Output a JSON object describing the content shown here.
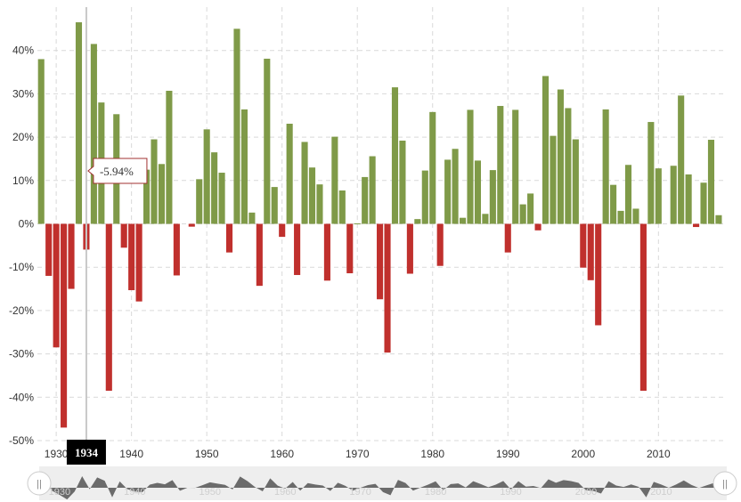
{
  "chart_data": {
    "type": "bar",
    "title": "",
    "xlabel": "",
    "ylabel": "",
    "x": [
      1928,
      1929,
      1930,
      1931,
      1932,
      1933,
      1934,
      1935,
      1936,
      1937,
      1938,
      1939,
      1940,
      1941,
      1942,
      1943,
      1944,
      1945,
      1946,
      1947,
      1948,
      1949,
      1950,
      1951,
      1952,
      1953,
      1954,
      1955,
      1956,
      1957,
      1958,
      1959,
      1960,
      1961,
      1962,
      1963,
      1964,
      1965,
      1966,
      1967,
      1968,
      1969,
      1970,
      1971,
      1972,
      1973,
      1974,
      1975,
      1976,
      1977,
      1978,
      1979,
      1980,
      1981,
      1982,
      1983,
      1984,
      1985,
      1986,
      1987,
      1988,
      1989,
      1990,
      1991,
      1992,
      1993,
      1994,
      1995,
      1996,
      1997,
      1998,
      1999,
      2000,
      2001,
      2002,
      2003,
      2004,
      2005,
      2006,
      2007,
      2008,
      2009,
      2010,
      2011,
      2012,
      2013,
      2014,
      2015,
      2016,
      2017,
      2018
    ],
    "values": [
      38,
      -12,
      -28.5,
      -47,
      -15,
      46.5,
      -5.94,
      41.5,
      28,
      -38.5,
      25.3,
      -5.5,
      -15.3,
      -17.9,
      12.5,
      19.5,
      13.8,
      30.7,
      -11.9,
      0,
      -0.65,
      10.3,
      21.8,
      16.5,
      11.8,
      -6.6,
      45,
      26.4,
      2.6,
      -14.3,
      38.1,
      8.5,
      -3,
      23.1,
      -11.8,
      18.9,
      13,
      9.1,
      -13.1,
      20.1,
      7.7,
      -11.4,
      0.1,
      10.8,
      15.6,
      -17.4,
      -29.7,
      31.5,
      19.2,
      -11.5,
      1.1,
      12.3,
      25.8,
      -9.7,
      14.8,
      17.3,
      1.4,
      26.3,
      14.6,
      2.3,
      12.4,
      27.2,
      -6.6,
      26.3,
      4.5,
      7,
      -1.5,
      34.1,
      20.3,
      31,
      26.7,
      19.5,
      -10.1,
      -13,
      -23.4,
      26.4,
      9,
      3,
      13.6,
      3.5,
      -38.5,
      23.5,
      12.8,
      0,
      13.4,
      29.6,
      11.4,
      -0.73,
      9.5,
      19.4,
      2
    ],
    "ylim": [
      -50,
      50
    ],
    "yticks": [
      -50,
      -40,
      -30,
      -20,
      -10,
      0,
      10,
      20,
      30,
      40
    ],
    "ytick_labels": [
      "-50%",
      "-40%",
      "-30%",
      "-20%",
      "-10%",
      "0%",
      "10%",
      "20%",
      "30%",
      "40%"
    ],
    "xticks": [
      1930,
      1940,
      1950,
      1960,
      1970,
      1980,
      1990,
      2000,
      2010
    ],
    "xtick_labels": [
      "1930",
      "1940",
      "1950",
      "1960",
      "1970",
      "1980",
      "1990",
      "2000",
      "2010"
    ],
    "grid": true,
    "colors": {
      "positive": "#7f9a48",
      "negative": "#c0302d",
      "grid": "#d9d9d9"
    },
    "tooltip": {
      "year": 1934,
      "label": "-5.94%"
    },
    "crosshair_label": "1934"
  },
  "navigator": {
    "tick_labels": [
      "1930",
      "1940",
      "1950",
      "1960",
      "1970",
      "1980",
      "1990",
      "2000",
      "2010"
    ],
    "left_handle": "||",
    "right_handle": "||"
  }
}
